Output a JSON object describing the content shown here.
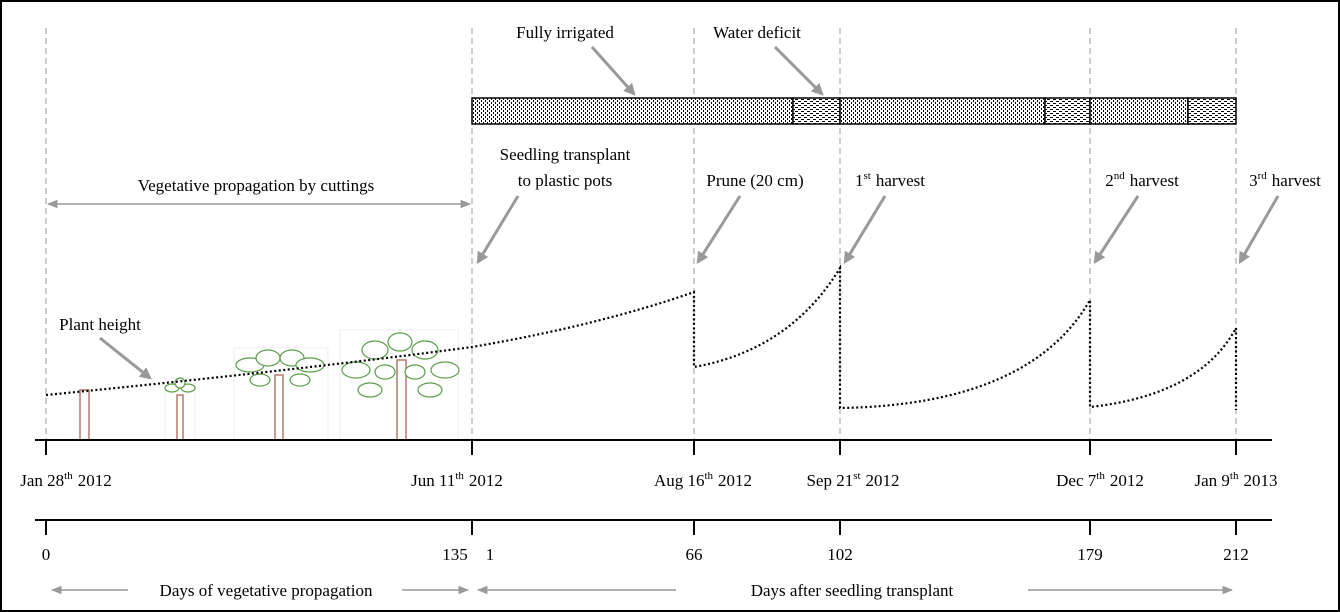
{
  "labels": {
    "fully_irrigated": "Fully irrigated",
    "water_deficit": "Water deficit",
    "seedling_transplant": [
      "Seedling transplant",
      "to plastic pots"
    ],
    "vegetative_propagation": "Vegetative propagation by cuttings",
    "prune": "Prune (20 cm)",
    "plant_height": "Plant height",
    "harvests": [
      {
        "base": "1",
        "sup": "st",
        "rest": "harvest"
      },
      {
        "base": "2",
        "sup": "nd",
        "rest": "harvest"
      },
      {
        "base": "3",
        "sup": "rd",
        "rest": "harvest"
      }
    ]
  },
  "dates": [
    {
      "base": "Jan 28",
      "sup": "th",
      "rest": "2012"
    },
    {
      "base": "Jun 11",
      "sup": "th",
      "rest": "2012"
    },
    {
      "base": "Aug 16",
      "sup": "th",
      "rest": "2012"
    },
    {
      "base": "Sep 21",
      "sup": "st",
      "rest": "2012"
    },
    {
      "base": "Dec 7",
      "sup": "th",
      "rest": "2012"
    },
    {
      "base": "Jan 9",
      "sup": "th",
      "rest": "2013"
    }
  ],
  "days": [
    "0",
    "135",
    "1",
    "66",
    "102",
    "179",
    "212"
  ],
  "periods": [
    "Days of vegetative propagation",
    "Days after seedling transplant"
  ]
}
